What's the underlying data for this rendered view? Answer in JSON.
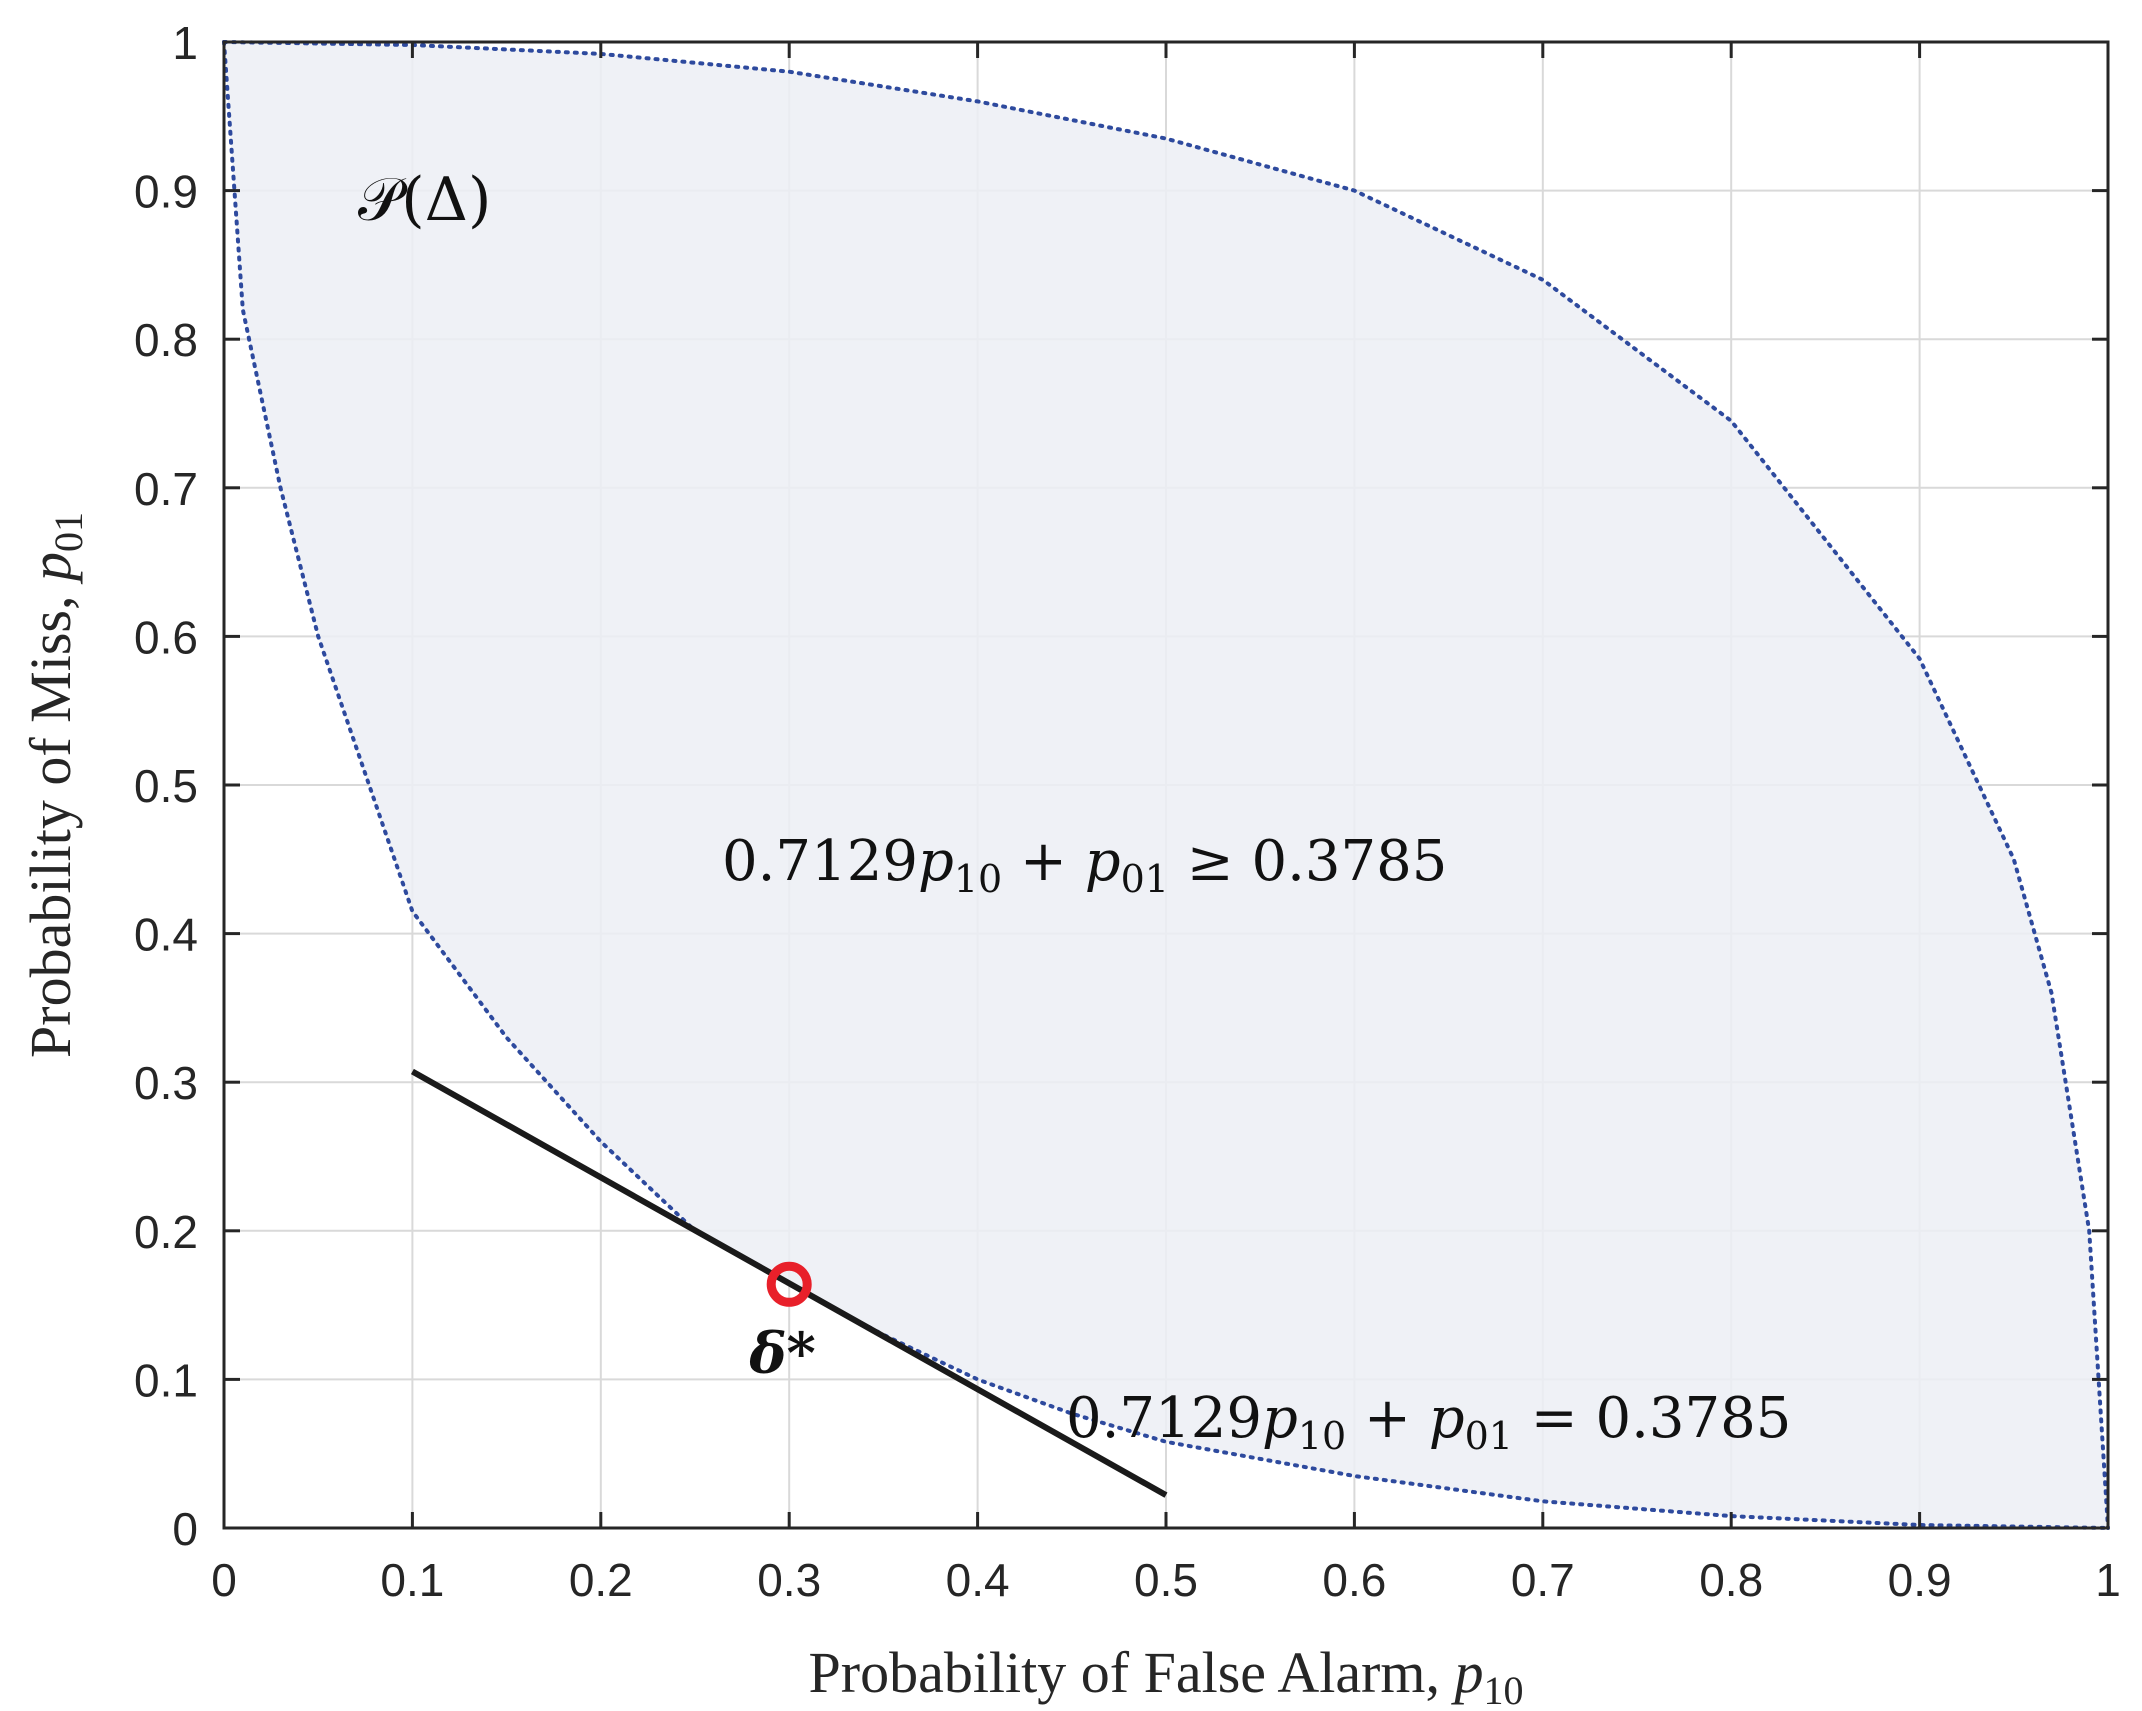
{
  "chart_data": {
    "type": "line",
    "title": "",
    "xlabel": {
      "text": "Probability of False Alarm, ",
      "var": "p",
      "sub": "10"
    },
    "ylabel": {
      "text": "Probability of Miss, ",
      "var": "p",
      "sub": "01"
    },
    "xlim": [
      0,
      1
    ],
    "ylim": [
      0,
      1
    ],
    "xticks": [
      0,
      0.1,
      0.2,
      0.3,
      0.4,
      0.5,
      0.6,
      0.7,
      0.8,
      0.9,
      1
    ],
    "yticks": [
      0,
      0.1,
      0.2,
      0.3,
      0.4,
      0.5,
      0.6,
      0.7,
      0.8,
      0.9,
      1
    ],
    "xtick_labels": [
      "0",
      "0.1",
      "0.2",
      "0.3",
      "0.4",
      "0.5",
      "0.6",
      "0.7",
      "0.8",
      "0.9",
      "1"
    ],
    "ytick_labels": [
      "0",
      "0.1",
      "0.2",
      "0.3",
      "0.4",
      "0.5",
      "0.6",
      "0.7",
      "0.8",
      "0.9",
      "1"
    ],
    "grid": true,
    "legend": "none",
    "region": {
      "name": "𝒫(Δ)",
      "fill_color": "#eceef5",
      "boundary_color": "#2e4a9e",
      "lower_boundary": [
        {
          "x": 0,
          "y": 1
        },
        {
          "x": 0.01,
          "y": 0.82
        },
        {
          "x": 0.03,
          "y": 0.7
        },
        {
          "x": 0.05,
          "y": 0.6
        },
        {
          "x": 0.1,
          "y": 0.415
        },
        {
          "x": 0.15,
          "y": 0.33
        },
        {
          "x": 0.2,
          "y": 0.26
        },
        {
          "x": 0.25,
          "y": 0.2
        },
        {
          "x": 0.3,
          "y": 0.164
        },
        {
          "x": 0.35,
          "y": 0.13
        },
        {
          "x": 0.4,
          "y": 0.1
        },
        {
          "x": 0.45,
          "y": 0.077
        },
        {
          "x": 0.5,
          "y": 0.058
        },
        {
          "x": 0.6,
          "y": 0.035
        },
        {
          "x": 0.7,
          "y": 0.018
        },
        {
          "x": 0.8,
          "y": 0.008
        },
        {
          "x": 0.9,
          "y": 0.002
        },
        {
          "x": 1,
          "y": 0
        }
      ],
      "upper_boundary": [
        {
          "x": 0,
          "y": 1
        },
        {
          "x": 0.1,
          "y": 0.998
        },
        {
          "x": 0.2,
          "y": 0.992
        },
        {
          "x": 0.3,
          "y": 0.98
        },
        {
          "x": 0.4,
          "y": 0.96
        },
        {
          "x": 0.5,
          "y": 0.935
        },
        {
          "x": 0.6,
          "y": 0.9
        },
        {
          "x": 0.7,
          "y": 0.84
        },
        {
          "x": 0.8,
          "y": 0.745
        },
        {
          "x": 0.9,
          "y": 0.585
        },
        {
          "x": 0.95,
          "y": 0.45
        },
        {
          "x": 0.97,
          "y": 0.36
        },
        {
          "x": 0.99,
          "y": 0.2
        },
        {
          "x": 1,
          "y": 0
        }
      ]
    },
    "series": [
      {
        "color": "#1a1a1a",
        "points": [
          {
            "x": 0.1,
            "y": 0.3072
          },
          {
            "x": 0.5,
            "y": 0.0221
          }
        ]
      }
    ],
    "optimum_point": {
      "x": 0.3,
      "y": 0.164,
      "label": "δ*",
      "color": "#e8202a"
    },
    "annotations": {
      "region_label": "𝒫(Δ)",
      "inequality": {
        "coef": "0.7129",
        "op": "≥",
        "rhs": "0.3785"
      },
      "equality": {
        "coef": "0.7129",
        "op": "=",
        "rhs": "0.3785"
      }
    }
  }
}
